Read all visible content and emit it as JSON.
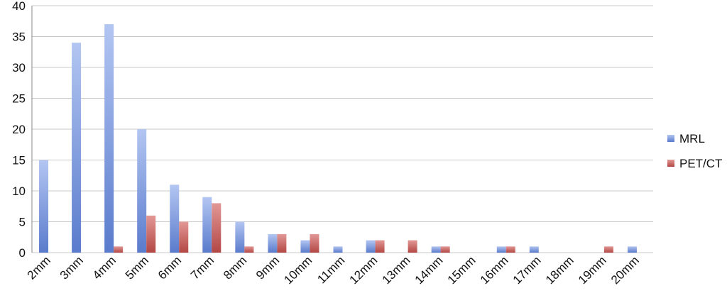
{
  "chart_data": {
    "type": "bar",
    "title": "",
    "xlabel": "",
    "ylabel": "",
    "ylim": [
      0,
      40
    ],
    "yticks": [
      0,
      5,
      10,
      15,
      20,
      25,
      30,
      35,
      40
    ],
    "grid": true,
    "legend_position": "right",
    "categories": [
      "2mm",
      "3mm",
      "4mm",
      "5mm",
      "6mm",
      "7mm",
      "8mm",
      "9mm",
      "10mm",
      "11mm",
      "12mm",
      "13mm",
      "14mm",
      "15mm",
      "16mm",
      "17mm",
      "18mm",
      "19mm",
      "20mm"
    ],
    "series": [
      {
        "name": "MRL",
        "color": "#6f8fd6",
        "values": [
          15,
          34,
          37,
          20,
          11,
          9,
          5,
          3,
          2,
          1,
          2,
          0,
          1,
          0,
          1,
          1,
          0,
          0,
          1
        ]
      },
      {
        "name": "PET/CT",
        "color": "#c0504d",
        "values": [
          0,
          0,
          1,
          6,
          5,
          8,
          1,
          3,
          3,
          0,
          2,
          2,
          1,
          0,
          1,
          0,
          0,
          1,
          0
        ]
      }
    ]
  }
}
